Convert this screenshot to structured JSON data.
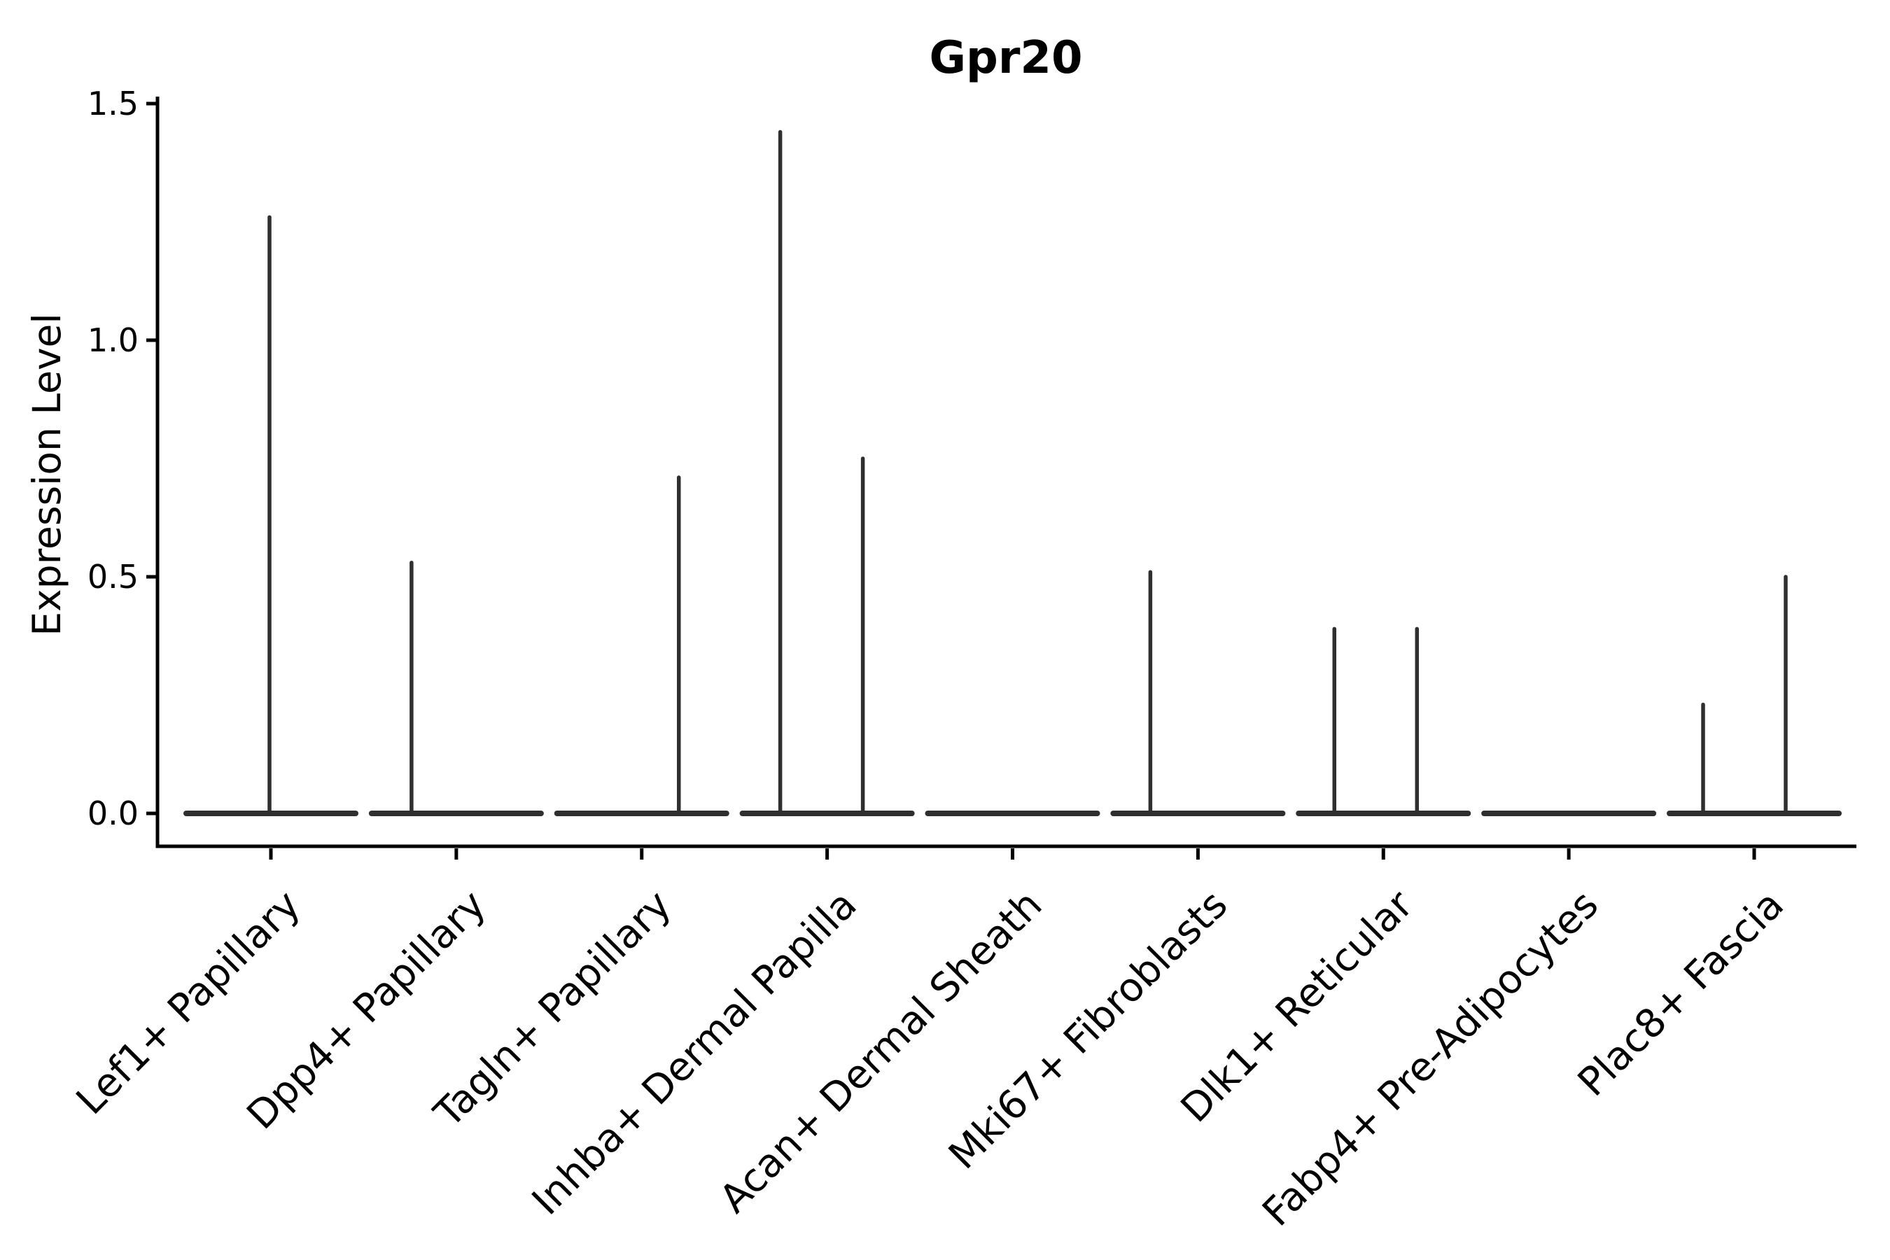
{
  "chart_data": {
    "type": "violin",
    "title": "Gpr20",
    "ylabel": "Expression Level",
    "xlabel": "",
    "ylim": [
      0.0,
      1.5
    ],
    "grid": false,
    "legend": "none",
    "baseline_value": 0.0,
    "yticks": [
      {
        "label": "0.0",
        "value": 0.0
      },
      {
        "label": "0.5",
        "value": 0.5
      },
      {
        "label": "1.0",
        "value": 1.0
      },
      {
        "label": "1.5",
        "value": 1.5
      }
    ],
    "categories": [
      {
        "label": "Lef1+ Papillary",
        "spikes": [
          {
            "value": 1.26,
            "dx": -2
          }
        ]
      },
      {
        "label": "Dpp4+ Papillary",
        "spikes": [
          {
            "value": 0.53,
            "dx": -64
          }
        ]
      },
      {
        "label": "Tagln+ Papillary",
        "spikes": [
          {
            "value": 0.71,
            "dx": 53
          }
        ]
      },
      {
        "label": "Inhba+ Dermal Papilla",
        "spikes": [
          {
            "value": 1.44,
            "dx": -67
          },
          {
            "value": 0.75,
            "dx": 51
          }
        ]
      },
      {
        "label": "Acan+ Dermal Sheath",
        "spikes": []
      },
      {
        "label": "Mki67+ Fibroblasts",
        "spikes": [
          {
            "value": 0.51,
            "dx": -68
          }
        ]
      },
      {
        "label": "Dlk1+ Reticular",
        "spikes": [
          {
            "value": 0.39,
            "dx": -70
          },
          {
            "value": 0.39,
            "dx": 48
          }
        ]
      },
      {
        "label": "Fabp4+ Pre-Adipocytes",
        "spikes": []
      },
      {
        "label": "Plac8+ Fascia",
        "spikes": [
          {
            "value": 0.23,
            "dx": -73
          },
          {
            "value": 0.5,
            "dx": 45
          }
        ]
      }
    ]
  },
  "colors": {
    "violin": "#2f2f2f",
    "axis": "#000000",
    "text": "#000000",
    "background": "#ffffff"
  }
}
